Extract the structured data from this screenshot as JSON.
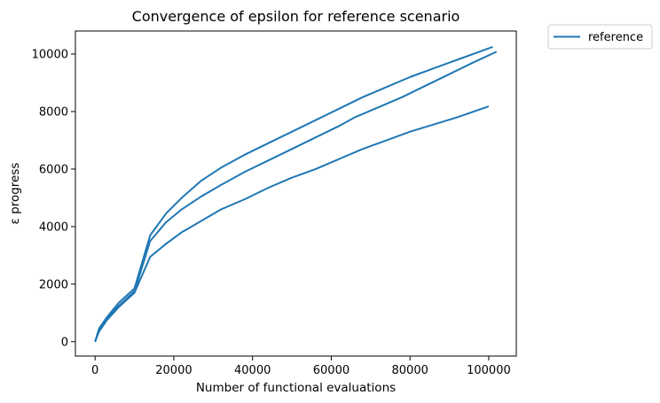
{
  "chart_data": {
    "type": "line",
    "title": "Convergence of epsilon for reference scenario",
    "xlabel": "Number of functional evaluations",
    "ylabel": "ε progress",
    "xlim": [
      -5000,
      107000
    ],
    "ylim": [
      -500,
      10800
    ],
    "xticks": [
      0,
      20000,
      40000,
      60000,
      80000,
      100000
    ],
    "yticks": [
      0,
      2000,
      4000,
      6000,
      8000,
      10000
    ],
    "grid": false,
    "legend_position": "outside-top-right",
    "series": [
      {
        "name": "reference",
        "color": "#1f77b4",
        "x": [
          0,
          1000,
          3000,
          6000,
          10000,
          14000,
          18000,
          22000,
          27000,
          32000,
          38000,
          44000,
          50000,
          56000,
          62000,
          68000,
          74000,
          80000,
          86000,
          92000,
          97000,
          101000
        ],
        "y": [
          0,
          450,
          850,
          1350,
          1850,
          3700,
          4450,
          5000,
          5600,
          6050,
          6500,
          6900,
          7300,
          7700,
          8100,
          8500,
          8850,
          9200,
          9500,
          9800,
          10050,
          10250
        ]
      },
      {
        "name": "reference",
        "color": "#1f77b4",
        "x": [
          0,
          1000,
          3000,
          6000,
          10000,
          14000,
          18000,
          22000,
          27000,
          32000,
          38000,
          44000,
          50000,
          56000,
          62000,
          66000,
          72000,
          78000,
          84000,
          90000,
          96000,
          102000
        ],
        "y": [
          0,
          400,
          800,
          1250,
          1750,
          3500,
          4150,
          4600,
          5050,
          5450,
          5900,
          6300,
          6700,
          7100,
          7500,
          7800,
          8150,
          8500,
          8900,
          9300,
          9700,
          10080
        ]
      },
      {
        "name": "reference",
        "color": "#1f77b4",
        "x": [
          0,
          1000,
          3000,
          6000,
          10000,
          14000,
          18000,
          22000,
          27000,
          32000,
          38000,
          44000,
          50000,
          56000,
          62000,
          68000,
          74000,
          80000,
          86000,
          92000,
          100000
        ],
        "y": [
          0,
          350,
          750,
          1200,
          1700,
          2950,
          3400,
          3800,
          4200,
          4600,
          4950,
          5350,
          5700,
          6000,
          6350,
          6700,
          7000,
          7300,
          7550,
          7800,
          8180
        ]
      }
    ],
    "legend": [
      "reference"
    ]
  }
}
